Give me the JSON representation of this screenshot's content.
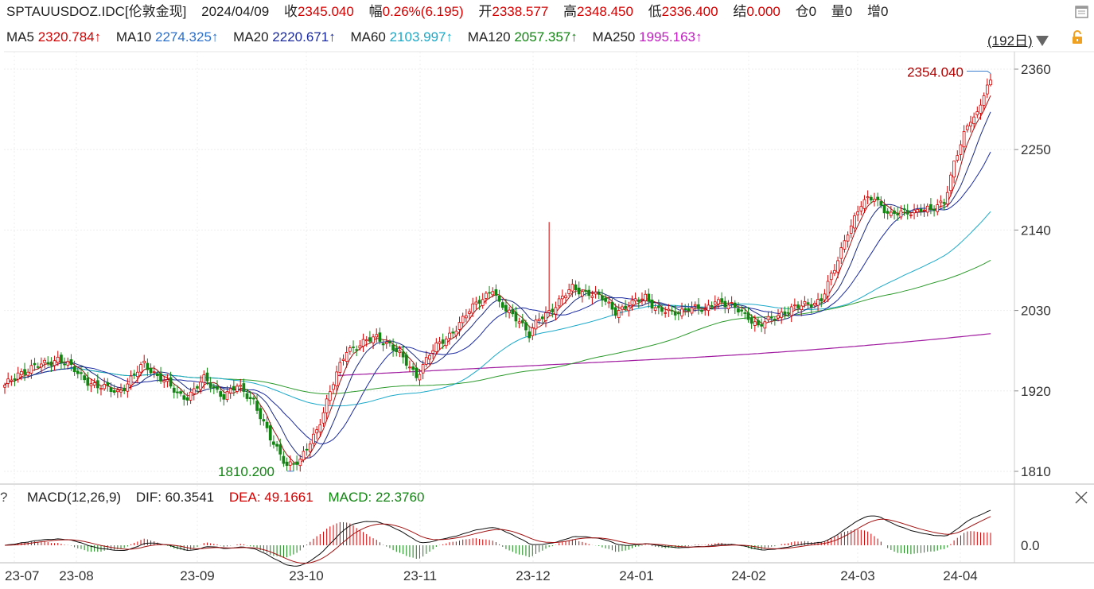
{
  "header": {
    "symbol": "SPTAUUSDOZ.IDC[伦敦金现]",
    "date": "2024/04/09",
    "close_label": "收",
    "close_value": "2345.040",
    "change_label": "幅",
    "change_value": "0.26%(6.195)",
    "open_label": "开",
    "open_value": "2338.577",
    "high_label": "高",
    "high_value": "2348.450",
    "low_label": "低",
    "low_value": "2336.400",
    "settle_label": "结",
    "settle_value": "0.000",
    "position_label": "仓",
    "position_value": "0",
    "volume_label": "量",
    "volume_value": "0",
    "increase_label": "增",
    "increase_value": "0"
  },
  "ma_header": {
    "ma5": "MA5",
    "ma5_value": "2320.784↑",
    "ma10": "MA10",
    "ma10_value": "2274.325↑",
    "ma20": "MA20",
    "ma20_value": "2220.671↑",
    "ma60": "MA60",
    "ma60_value": "2103.997↑",
    "ma120": "MA120",
    "ma120_value": "2057.357↑",
    "ma250": "MA250",
    "ma250_value": "1995.163↑",
    "cycle": "(192日)"
  },
  "macd_header": {
    "help": "?",
    "title": "MACD(12,26,9)",
    "dif": "DIF: 60.3541",
    "dea": "DEA: 49.1661",
    "macd": "MACD: 22.3760"
  },
  "colors": {
    "up": "#d40000",
    "down": "#128512",
    "ma5": "#a01010",
    "ma10": "#1a2a80",
    "ma20": "#1a2aa0",
    "ma60": "#1aa9c9",
    "ma120": "#2c9a2c",
    "ma250": "#a01aa0",
    "dif": "#111111",
    "dea": "#a01010"
  },
  "chart_data": [
    {
      "type": "candlestick",
      "title": "SPTAUUSDOZ.IDC[伦敦金现]",
      "y_ticks": [
        "2360",
        "2250",
        "2140",
        "2030",
        "1920",
        "1810"
      ],
      "ylim": [
        1805,
        2385
      ],
      "x_ticks": [
        "23-07",
        "23-08",
        "23-09",
        "23-10",
        "23-11",
        "23-12",
        "24-01",
        "24-02",
        "24-03",
        "24-04"
      ],
      "annotations": {
        "high": "2354.040",
        "low": "1810.200"
      },
      "month_keypoints": [
        {
          "idx": 0,
          "close": 1925
        },
        {
          "idx": 4,
          "close": 1945
        },
        {
          "idx": 10,
          "close": 1953
        },
        {
          "idx": 16,
          "close": 1965
        },
        {
          "idx": 22,
          "close": 1944
        },
        {
          "idx": 28,
          "close": 1925
        },
        {
          "idx": 34,
          "close": 1920
        },
        {
          "idx": 37,
          "close": 1930
        },
        {
          "idx": 42,
          "close": 1957
        },
        {
          "idx": 47,
          "close": 1938
        },
        {
          "idx": 52,
          "close": 1915
        },
        {
          "idx": 55,
          "close": 1913
        },
        {
          "idx": 60,
          "close": 1935
        },
        {
          "idx": 66,
          "close": 1914
        },
        {
          "idx": 70,
          "close": 1925
        },
        {
          "idx": 75,
          "close": 1908
        },
        {
          "idx": 80,
          "close": 1853
        },
        {
          "idx": 85,
          "close": 1821
        },
        {
          "idx": 89,
          "close": 1822
        },
        {
          "idx": 94,
          "close": 1868
        },
        {
          "idx": 98,
          "close": 1918
        },
        {
          "idx": 103,
          "close": 1977
        },
        {
          "idx": 108,
          "close": 1985
        },
        {
          "idx": 112,
          "close": 1993
        },
        {
          "idx": 116,
          "close": 1985
        },
        {
          "idx": 121,
          "close": 1957
        },
        {
          "idx": 124,
          "close": 1942
        },
        {
          "idx": 128,
          "close": 1970
        },
        {
          "idx": 133,
          "close": 1993
        },
        {
          "idx": 138,
          "close": 2017
        },
        {
          "idx": 143,
          "close": 2045
        },
        {
          "idx": 147,
          "close": 2060
        },
        {
          "idx": 149,
          "close": 2036
        },
        {
          "idx": 155,
          "close": 2019
        },
        {
          "idx": 158,
          "close": 1995
        },
        {
          "idx": 161,
          "close": 2018
        },
        {
          "idx": 166,
          "close": 2038
        },
        {
          "idx": 171,
          "close": 2060
        },
        {
          "idx": 176,
          "close": 2055
        },
        {
          "idx": 180,
          "close": 2045
        },
        {
          "idx": 184,
          "close": 2030
        },
        {
          "idx": 189,
          "close": 2038
        },
        {
          "idx": 193,
          "close": 2050
        },
        {
          "idx": 197,
          "close": 2030
        },
        {
          "idx": 201,
          "close": 2025
        },
        {
          "idx": 206,
          "close": 2035
        },
        {
          "idx": 211,
          "close": 2028
        },
        {
          "idx": 214,
          "close": 2047
        },
        {
          "idx": 218,
          "close": 2036
        },
        {
          "idx": 221,
          "close": 2030
        },
        {
          "idx": 224,
          "close": 2023
        },
        {
          "idx": 227,
          "close": 2008
        },
        {
          "idx": 230,
          "close": 2015
        },
        {
          "idx": 235,
          "close": 2030
        },
        {
          "idx": 240,
          "close": 2035
        },
        {
          "idx": 246,
          "close": 2046
        },
        {
          "idx": 250,
          "close": 2085
        },
        {
          "idx": 254,
          "close": 2140
        },
        {
          "idx": 258,
          "close": 2174
        },
        {
          "idx": 262,
          "close": 2185
        },
        {
          "idx": 267,
          "close": 2160
        },
        {
          "idx": 271,
          "close": 2163
        },
        {
          "idx": 276,
          "close": 2170
        },
        {
          "idx": 279,
          "close": 2165
        },
        {
          "idx": 283,
          "close": 2180
        },
        {
          "idx": 286,
          "close": 2233
        },
        {
          "idx": 289,
          "close": 2268
        },
        {
          "idx": 291,
          "close": 2290
        },
        {
          "idx": 293,
          "close": 2300
        },
        {
          "idx": 295,
          "close": 2330
        },
        {
          "idx": 297,
          "close": 2345
        }
      ],
      "series": [
        {
          "name": "MA5",
          "last": 2320.784
        },
        {
          "name": "MA10",
          "last": 2274.325
        },
        {
          "name": "MA20",
          "last": 2220.671
        },
        {
          "name": "MA60",
          "last": 2103.997
        },
        {
          "name": "MA120",
          "last": 2057.357
        },
        {
          "name": "MA250",
          "last": 1995.163
        }
      ]
    },
    {
      "type": "macd",
      "title": "MACD(12,26,9)",
      "y_ticks": [
        "0.0"
      ],
      "series": [
        {
          "name": "DIF",
          "last": 60.3541
        },
        {
          "name": "DEA",
          "last": 49.1661
        },
        {
          "name": "MACD",
          "last": 22.376
        }
      ]
    }
  ]
}
